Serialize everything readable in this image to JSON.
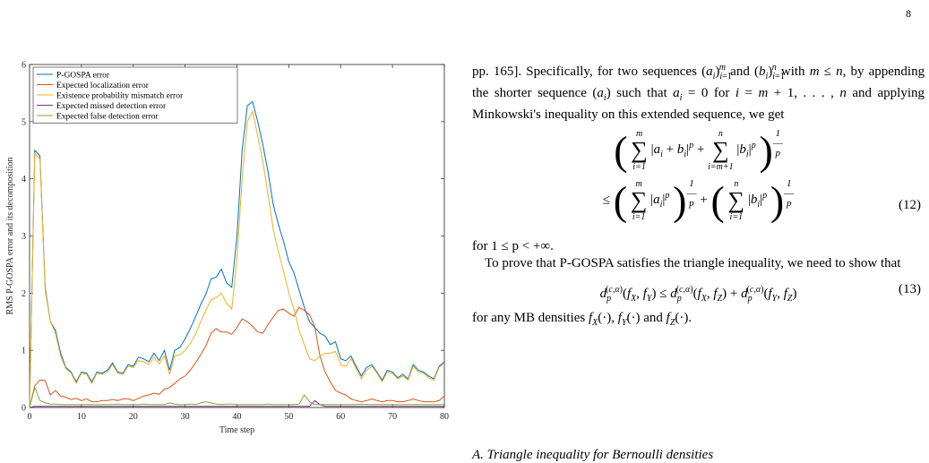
{
  "page_number": "8",
  "chart_data": {
    "type": "line",
    "xlabel": "Time step",
    "ylabel": "RMS P-GOSPA error and its decomposition",
    "xlim": [
      0,
      80
    ],
    "ylim": [
      0,
      6
    ],
    "xticks": [
      0,
      10,
      20,
      30,
      40,
      50,
      60,
      70,
      80
    ],
    "yticks": [
      0,
      1,
      2,
      3,
      4,
      5,
      6
    ],
    "legend_position": "top-left",
    "x": [
      0,
      1,
      2,
      3,
      4,
      5,
      6,
      7,
      8,
      9,
      10,
      11,
      12,
      13,
      14,
      15,
      16,
      17,
      18,
      19,
      20,
      21,
      22,
      23,
      24,
      25,
      26,
      27,
      28,
      29,
      30,
      31,
      32,
      33,
      34,
      35,
      36,
      37,
      38,
      39,
      40,
      41,
      42,
      43,
      44,
      45,
      46,
      47,
      48,
      49,
      50,
      51,
      52,
      53,
      54,
      55,
      56,
      57,
      58,
      59,
      60,
      61,
      62,
      63,
      64,
      65,
      66,
      67,
      68,
      69,
      70,
      71,
      72,
      73,
      74,
      75,
      76,
      77,
      78,
      79,
      80
    ],
    "series": [
      {
        "name": "P-GOSPA error",
        "color": "#0072BD",
        "values": [
          0,
          4.5,
          4.4,
          2.1,
          1.5,
          1.35,
          0.95,
          0.7,
          0.62,
          0.45,
          0.62,
          0.6,
          0.45,
          0.62,
          0.6,
          0.65,
          0.78,
          0.62,
          0.6,
          0.75,
          0.72,
          0.88,
          0.85,
          0.8,
          0.95,
          0.82,
          1.0,
          0.65,
          1.0,
          1.05,
          1.2,
          1.38,
          1.58,
          1.8,
          1.98,
          2.25,
          2.28,
          2.42,
          2.18,
          2.1,
          3.0,
          4.5,
          5.28,
          5.35,
          5.0,
          4.6,
          4.12,
          3.55,
          3.2,
          2.9,
          2.55,
          2.35,
          2.05,
          1.75,
          1.5,
          1.4,
          1.3,
          1.25,
          1.1,
          1.15,
          0.85,
          0.82,
          0.9,
          0.72,
          0.55,
          0.7,
          0.75,
          0.62,
          0.48,
          0.65,
          0.62,
          0.52,
          0.58,
          0.5,
          0.75,
          0.65,
          0.62,
          0.55,
          0.5,
          0.72,
          0.8
        ]
      },
      {
        "name": "Expected localization error",
        "color": "#D95319",
        "values": [
          0,
          0.38,
          0.48,
          0.47,
          0.22,
          0.3,
          0.2,
          0.18,
          0.14,
          0.16,
          0.12,
          0.15,
          0.1,
          0.1,
          0.12,
          0.12,
          0.14,
          0.12,
          0.15,
          0.15,
          0.12,
          0.16,
          0.2,
          0.22,
          0.25,
          0.23,
          0.32,
          0.35,
          0.42,
          0.5,
          0.55,
          0.65,
          0.78,
          0.92,
          1.08,
          1.3,
          1.38,
          1.32,
          1.32,
          1.28,
          1.4,
          1.55,
          1.5,
          1.42,
          1.32,
          1.3,
          1.45,
          1.58,
          1.7,
          1.72,
          1.65,
          1.6,
          1.75,
          1.7,
          1.62,
          1.42,
          0.9,
          0.62,
          0.45,
          0.3,
          0.25,
          0.22,
          0.15,
          0.12,
          0.1,
          0.12,
          0.15,
          0.12,
          0.1,
          0.12,
          0.12,
          0.1,
          0.1,
          0.12,
          0.15,
          0.12,
          0.1,
          0.1,
          0.1,
          0.12,
          0.2
        ]
      },
      {
        "name": "Existence probability mismatch error",
        "color": "#EDB120",
        "values": [
          0,
          4.45,
          4.35,
          2.05,
          1.5,
          1.3,
          0.9,
          0.68,
          0.6,
          0.42,
          0.6,
          0.58,
          0.42,
          0.6,
          0.58,
          0.62,
          0.75,
          0.6,
          0.58,
          0.72,
          0.7,
          0.82,
          0.8,
          0.75,
          0.88,
          0.76,
          0.9,
          0.58,
          0.9,
          0.92,
          1.0,
          1.12,
          1.28,
          1.5,
          1.7,
          1.88,
          1.92,
          2.0,
          1.82,
          1.72,
          2.6,
          4.0,
          5.0,
          5.18,
          4.75,
          4.3,
          3.72,
          3.12,
          2.72,
          2.38,
          2.0,
          1.72,
          1.35,
          1.1,
          0.85,
          0.82,
          0.9,
          0.95,
          0.95,
          0.98,
          0.75,
          0.72,
          0.85,
          0.68,
          0.5,
          0.65,
          0.72,
          0.6,
          0.45,
          0.62,
          0.6,
          0.5,
          0.55,
          0.48,
          0.72,
          0.62,
          0.6,
          0.52,
          0.48,
          0.7,
          0.78
        ]
      },
      {
        "name": "Expected missed detection error",
        "color": "#7E2F8E",
        "values": [
          0,
          0.02,
          0.02,
          0.02,
          0.02,
          0.02,
          0.02,
          0.02,
          0.02,
          0.02,
          0.02,
          0.02,
          0.02,
          0.02,
          0.02,
          0.02,
          0.02,
          0.02,
          0.02,
          0.02,
          0.02,
          0.02,
          0.02,
          0.02,
          0.02,
          0.02,
          0.02,
          0.02,
          0.02,
          0.02,
          0.02,
          0.02,
          0.02,
          0.02,
          0.02,
          0.02,
          0.02,
          0.02,
          0.02,
          0.02,
          0.02,
          0.02,
          0.02,
          0.02,
          0.02,
          0.02,
          0.02,
          0.02,
          0.02,
          0.02,
          0.02,
          0.02,
          0.02,
          0.02,
          0.02,
          0.12,
          0.05,
          0.02,
          0.02,
          0.02,
          0.02,
          0.02,
          0.02,
          0.02,
          0.02,
          0.02,
          0.02,
          0.02,
          0.02,
          0.02,
          0.02,
          0.02,
          0.02,
          0.02,
          0.02,
          0.02,
          0.02,
          0.02,
          0.02,
          0.02,
          0.02
        ]
      },
      {
        "name": "Expected false detection error",
        "color": "#77AC30",
        "values": [
          0,
          0.35,
          0.12,
          0.08,
          0.06,
          0.06,
          0.05,
          0.05,
          0.05,
          0.05,
          0.05,
          0.05,
          0.05,
          0.05,
          0.05,
          0.05,
          0.05,
          0.06,
          0.05,
          0.05,
          0.05,
          0.05,
          0.06,
          0.05,
          0.05,
          0.05,
          0.05,
          0.08,
          0.06,
          0.05,
          0.05,
          0.06,
          0.05,
          0.08,
          0.1,
          0.08,
          0.06,
          0.05,
          0.06,
          0.06,
          0.05,
          0.05,
          0.05,
          0.05,
          0.05,
          0.05,
          0.06,
          0.05,
          0.05,
          0.05,
          0.05,
          0.05,
          0.06,
          0.22,
          0.1,
          0.05,
          0.05,
          0.05,
          0.05,
          0.05,
          0.05,
          0.05,
          0.05,
          0.05,
          0.06,
          0.05,
          0.05,
          0.05,
          0.05,
          0.05,
          0.05,
          0.05,
          0.05,
          0.05,
          0.05,
          0.05,
          0.05,
          0.05,
          0.05,
          0.05,
          0.05
        ]
      }
    ]
  },
  "text": {
    "p1": "pp. 165]. Specifically, for two sequences",
    "p1b": "and",
    "p1c": "with",
    "p1d": ", by appending the shorter sequence",
    "p1e": "such that",
    "p1f": "for",
    "p1g": "and applying Minkowski's inequality on this extended sequence, we get",
    "eq12": "(12)",
    "p2": "for 1 ≤ p < +∞.",
    "p3": "To prove that P-GOSPA satisfies the triangle inequality, we need to show that",
    "eq13": "(13)",
    "p4": "for any MB densities",
    "section": "A. Triangle inequality for Bernoulli densities"
  }
}
